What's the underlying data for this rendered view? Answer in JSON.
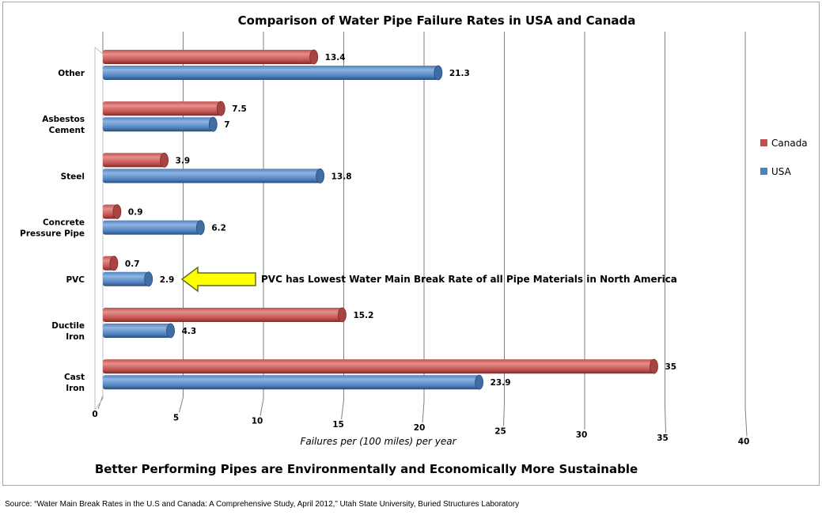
{
  "chart_data": {
    "type": "bar",
    "orientation": "horizontal",
    "title": "Comparison of Water Pipe Failure Rates in USA and Canada",
    "subtitle": "Better Performing Pipes are Environmentally and Economically More Sustainable",
    "xlabel": "Failures per (100 miles) per year",
    "categories": [
      [
        "Other"
      ],
      [
        "Asbestos",
        "Cement"
      ],
      [
        "Steel"
      ],
      [
        "Concrete",
        "Pressure Pipe"
      ],
      [
        "PVC"
      ],
      [
        "Ductile",
        "Iron"
      ],
      [
        "Cast",
        "Iron"
      ]
    ],
    "series": [
      {
        "name": "Canada",
        "color": "#c0504d",
        "values": [
          13.4,
          7.5,
          3.9,
          0.9,
          0.7,
          15.2,
          35
        ]
      },
      {
        "name": "USA",
        "color": "#4f81bd",
        "values": [
          21.3,
          7,
          13.8,
          6.2,
          2.9,
          4.3,
          23.9
        ]
      }
    ],
    "value_labels": {
      "Canada": [
        "13.4",
        "7.5",
        "3.9",
        "0.9",
        "0.7",
        "15.2",
        "35"
      ],
      "USA": [
        "21.3",
        "7",
        "13.8",
        "6.2",
        "2.9",
        "4.3",
        "23.9"
      ]
    },
    "xlim": [
      0,
      40
    ],
    "xticks": [
      "0",
      "5",
      "10",
      "15",
      "20",
      "25",
      "30",
      "35",
      "40"
    ],
    "grid": true,
    "legend": "right",
    "annotation": {
      "text": "PVC has Lowest Water Main Break Rate of all Pipe Materials in North America",
      "points_to": "PVC",
      "arrow_color": "#ffff00"
    }
  },
  "source": "Source: “Water Main Break Rates in the U.S and Canada: A Comprehensive Study, April 2012,” Utah State University, Buried Structures Laboratory"
}
